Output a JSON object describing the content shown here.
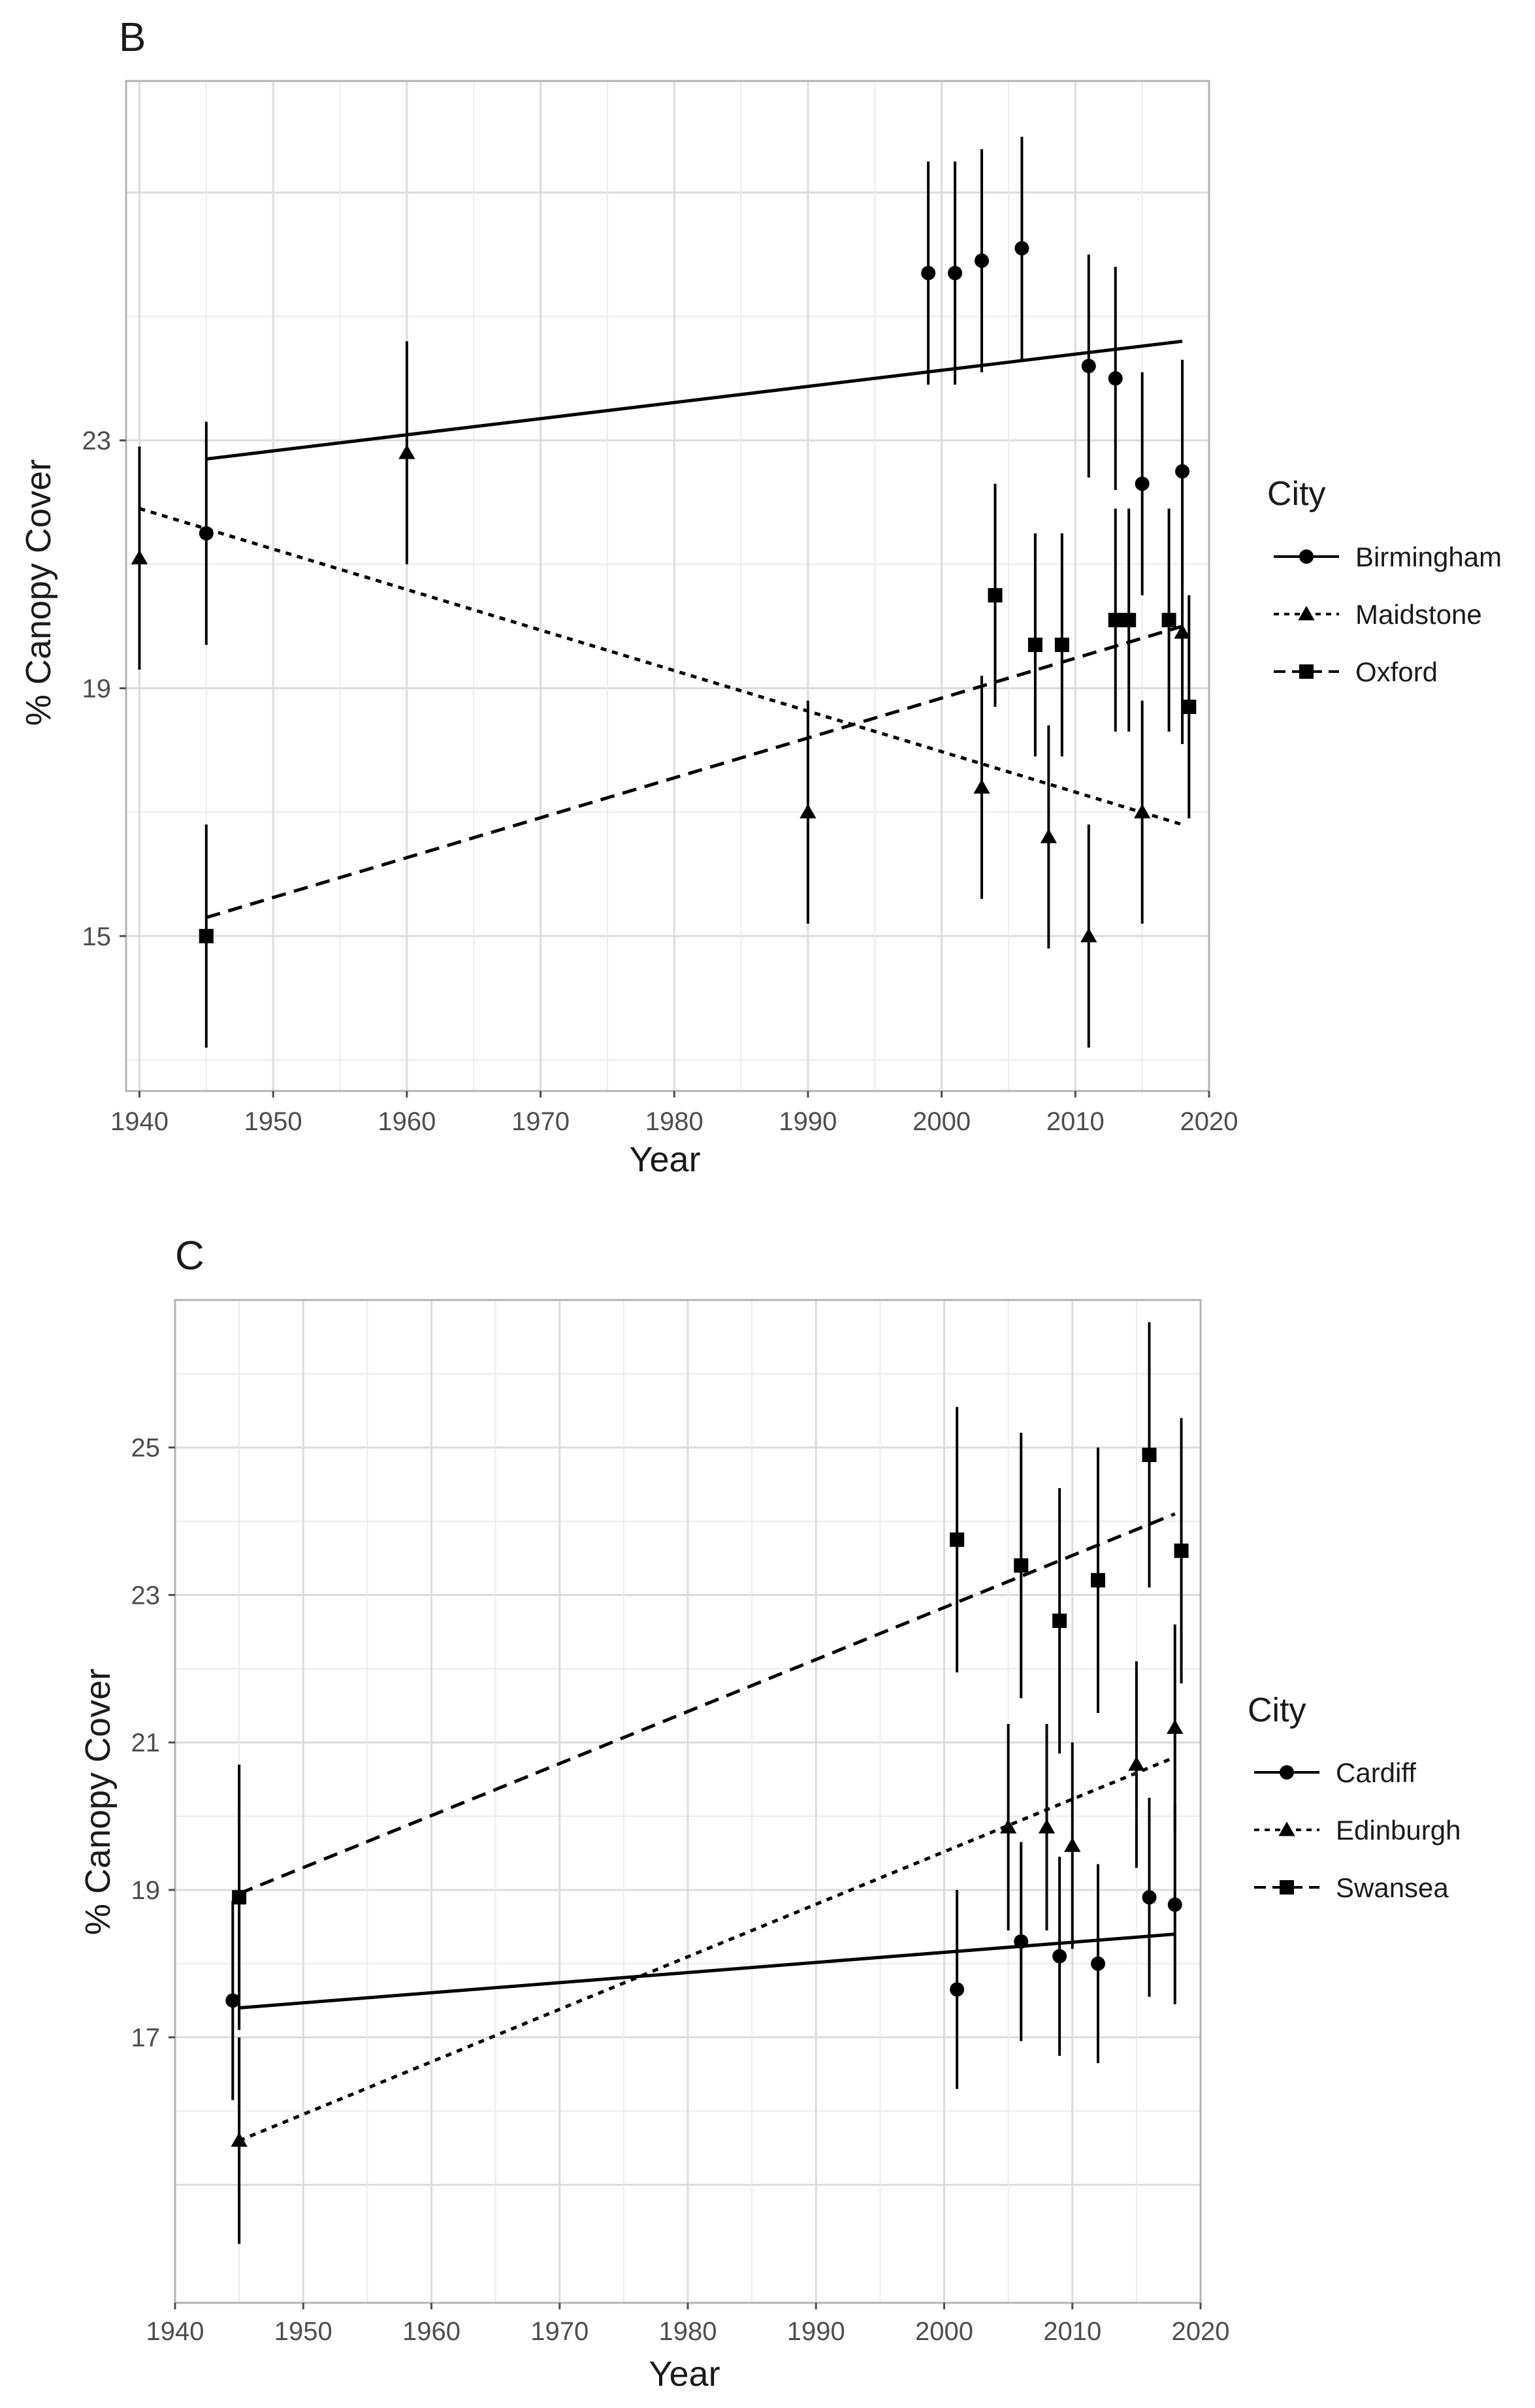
{
  "chart_data": [
    {
      "type": "scatter",
      "panel_label": "B",
      "xlabel": "Year",
      "ylabel": "% Canopy Cover",
      "xlim": [
        1939,
        2020
      ],
      "ylim": [
        12.5,
        28.8
      ],
      "xticks": [
        "1940",
        "1950",
        "1960",
        "1970",
        "1980",
        "1990",
        "2000",
        "2010",
        "2020"
      ],
      "yticks": [
        "15",
        "19",
        "23"
      ],
      "grid": true,
      "legend_title": "City",
      "legend_position": "right",
      "series": [
        {
          "name": "Birmingham",
          "marker": "circle",
          "line": "solid",
          "trend": [
            [
              1945,
              22.7
            ],
            [
              2018,
              24.6
            ]
          ],
          "points": [
            {
              "x": 1945,
              "y": 21.5,
              "err": 1.8
            },
            {
              "x": 1999,
              "y": 25.7,
              "err": 1.8
            },
            {
              "x": 2001,
              "y": 25.7,
              "err": 1.8
            },
            {
              "x": 2003,
              "y": 25.9,
              "err": 1.8
            },
            {
              "x": 2006,
              "y": 26.1,
              "err": 1.8
            },
            {
              "x": 2011,
              "y": 24.2,
              "err": 1.8
            },
            {
              "x": 2013,
              "y": 24.0,
              "err": 1.8
            },
            {
              "x": 2015,
              "y": 22.3,
              "err": 1.8
            },
            {
              "x": 2018,
              "y": 22.5,
              "err": 1.8
            }
          ]
        },
        {
          "name": "Maidstone",
          "marker": "triangle",
          "line": "dotted",
          "trend": [
            [
              1940,
              21.9
            ],
            [
              2018,
              16.8
            ]
          ],
          "points": [
            {
              "x": 1940,
              "y": 21.1,
              "err": 1.8
            },
            {
              "x": 1960,
              "y": 22.8,
              "err": 1.8
            },
            {
              "x": 1990,
              "y": 17.0,
              "err": 1.8
            },
            {
              "x": 2003,
              "y": 17.4,
              "err": 1.8
            },
            {
              "x": 2008,
              "y": 16.6,
              "err": 1.8
            },
            {
              "x": 2011,
              "y": 15.0,
              "err": 1.8
            },
            {
              "x": 2015,
              "y": 17.0,
              "err": 1.8
            },
            {
              "x": 2018,
              "y": 19.9,
              "err": 1.8
            }
          ]
        },
        {
          "name": "Oxford",
          "marker": "square",
          "line": "dashed",
          "trend": [
            [
              1945,
              15.3
            ],
            [
              2018,
              20.0
            ]
          ],
          "points": [
            {
              "x": 1945,
              "y": 15.0,
              "err": 1.8
            },
            {
              "x": 2004,
              "y": 20.5,
              "err": 1.8
            },
            {
              "x": 2007,
              "y": 19.7,
              "err": 1.8
            },
            {
              "x": 2009,
              "y": 19.7,
              "err": 1.8
            },
            {
              "x": 2013,
              "y": 20.1,
              "err": 1.8
            },
            {
              "x": 2014,
              "y": 20.1,
              "err": 1.8
            },
            {
              "x": 2017,
              "y": 20.1,
              "err": 1.8
            },
            {
              "x": 2018.5,
              "y": 18.7,
              "err": 1.8
            }
          ]
        }
      ]
    },
    {
      "type": "scatter",
      "panel_label": "C",
      "xlabel": "Year",
      "ylabel": "% Canopy Cover",
      "xlim": [
        1940,
        2020
      ],
      "ylim": [
        13.4,
        27.0
      ],
      "xticks": [
        "1940",
        "1950",
        "1960",
        "1970",
        "1980",
        "1990",
        "2000",
        "2010",
        "2020"
      ],
      "yticks": [
        "17",
        "19",
        "21",
        "23",
        "25"
      ],
      "grid": true,
      "legend_title": "City",
      "legend_position": "right",
      "series": [
        {
          "name": "Cardiff",
          "marker": "circle",
          "line": "solid",
          "trend": [
            [
              1945,
              17.4
            ],
            [
              2018,
              18.4
            ]
          ],
          "points": [
            {
              "x": 1944.5,
              "y": 17.5,
              "err": 1.35
            },
            {
              "x": 2001,
              "y": 17.65,
              "err": 1.35
            },
            {
              "x": 2006,
              "y": 18.3,
              "err": 1.35
            },
            {
              "x": 2009,
              "y": 18.1,
              "err": 1.35
            },
            {
              "x": 2012,
              "y": 18.0,
              "err": 1.35
            },
            {
              "x": 2016,
              "y": 18.9,
              "err": 1.35
            },
            {
              "x": 2018,
              "y": 18.8,
              "err": 1.35
            }
          ]
        },
        {
          "name": "Edinburgh",
          "marker": "triangle",
          "line": "dotted",
          "trend": [
            [
              1945,
              15.6
            ],
            [
              2018,
              20.8
            ]
          ],
          "points": [
            {
              "x": 1945,
              "y": 15.6,
              "err": 1.4
            },
            {
              "x": 2005,
              "y": 19.85,
              "err": 1.4
            },
            {
              "x": 2008,
              "y": 19.85,
              "err": 1.4
            },
            {
              "x": 2010,
              "y": 19.6,
              "err": 1.4
            },
            {
              "x": 2015,
              "y": 20.7,
              "err": 1.4
            },
            {
              "x": 2018,
              "y": 21.2,
              "err": 1.4
            }
          ]
        },
        {
          "name": "Swansea",
          "marker": "square",
          "line": "dashed",
          "trend": [
            [
              1945,
              18.95
            ],
            [
              2018,
              24.1
            ]
          ],
          "points": [
            {
              "x": 1945,
              "y": 18.9,
              "err": 1.8
            },
            {
              "x": 2001,
              "y": 23.75,
              "err": 1.8
            },
            {
              "x": 2006,
              "y": 23.4,
              "err": 1.8
            },
            {
              "x": 2009,
              "y": 22.65,
              "err": 1.8
            },
            {
              "x": 2012,
              "y": 23.2,
              "err": 1.8
            },
            {
              "x": 2016,
              "y": 24.9,
              "err": 1.8
            },
            {
              "x": 2018.5,
              "y": 23.6,
              "err": 1.8
            }
          ]
        }
      ]
    }
  ]
}
